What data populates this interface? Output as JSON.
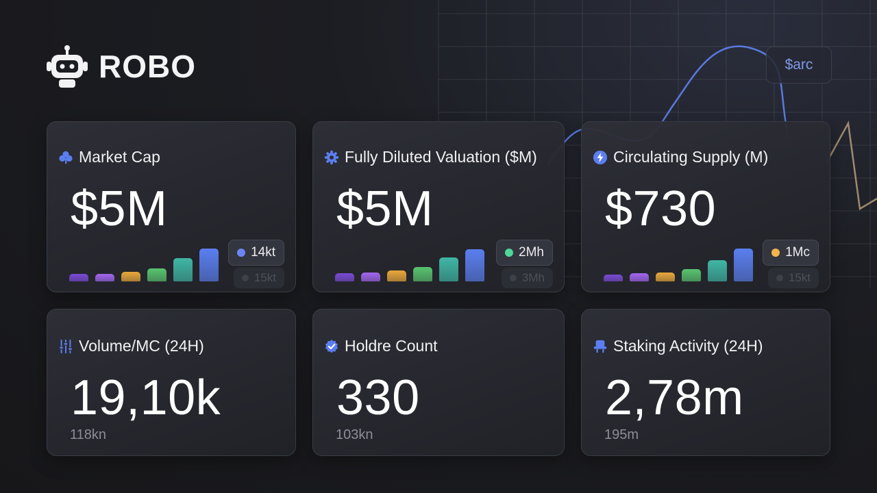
{
  "brand": {
    "name": "ROBO"
  },
  "token_chip": {
    "label": "$arc"
  },
  "cards": [
    {
      "title": "Market Cap",
      "icon": "clover-icon",
      "value": "$5M",
      "badge": "14kt",
      "badge_color": "#6b86f2",
      "ghost": "15kt",
      "bar_levels": [
        0.22,
        0.22,
        0.3,
        0.4,
        0.7,
        1.0
      ]
    },
    {
      "title": "Fully Diluted Valuation ($M)",
      "icon": "gear-icon",
      "value": "$5M",
      "badge": "2Mh",
      "badge_color": "#4fd79a",
      "ghost": "3Mh",
      "bar_levels": [
        0.25,
        0.28,
        0.33,
        0.44,
        0.72,
        0.97
      ]
    },
    {
      "title": "Circulating Supply (M)",
      "icon": "lightning-icon",
      "value": "$730",
      "badge": "1Mc",
      "badge_color": "#f3b44c",
      "ghost": "15kt",
      "bar_levels": [
        0.21,
        0.24,
        0.28,
        0.38,
        0.65,
        1.0
      ]
    },
    {
      "title": "Volume/MC (24H)",
      "icon": "sliders-icon",
      "value": "19,10k",
      "sub": "118kn"
    },
    {
      "title": "Holdre Count",
      "icon": "verified-badge-icon",
      "value": "330",
      "sub": "103kn"
    },
    {
      "title": "Staking Activity (24H)",
      "icon": "stand-icon",
      "value": "2,78m",
      "sub": "195m"
    }
  ],
  "colors": {
    "accent": "#5b7ef0",
    "bars": [
      "#7a4bd6",
      "#a366f0",
      "#e9a83b",
      "#58c46e",
      "#3fb7a5",
      "#5a7ff0"
    ]
  }
}
